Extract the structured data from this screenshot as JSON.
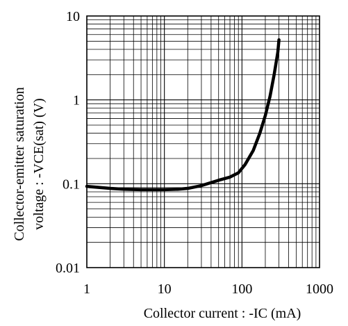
{
  "chart_data": {
    "type": "line",
    "xlabel": "Collector current : -IC (mA)",
    "ylabel_lines": [
      "Collector-emitter saturation",
      "voltage : -VCE(sat) (V)"
    ],
    "x_scale": "log",
    "y_scale": "log",
    "xlim": [
      1,
      1000
    ],
    "ylim": [
      0.01,
      10
    ],
    "x_tick_labels": [
      "1",
      "10",
      "100",
      "1000"
    ],
    "y_tick_labels": [
      "10",
      "1",
      "0.1",
      "0.01"
    ],
    "x_tick_values": [
      1,
      10,
      100,
      1000
    ],
    "y_tick_values": [
      10,
      1,
      0.1,
      0.01
    ],
    "grid": true,
    "series": [
      {
        "color": "#000000",
        "points": [
          {
            "x": 1,
            "y": 0.093
          },
          {
            "x": 2,
            "y": 0.088
          },
          {
            "x": 3,
            "y": 0.086
          },
          {
            "x": 5,
            "y": 0.085
          },
          {
            "x": 10,
            "y": 0.085
          },
          {
            "x": 15,
            "y": 0.086
          },
          {
            "x": 20,
            "y": 0.088
          },
          {
            "x": 30,
            "y": 0.095
          },
          {
            "x": 50,
            "y": 0.11
          },
          {
            "x": 70,
            "y": 0.12
          },
          {
            "x": 90,
            "y": 0.135
          },
          {
            "x": 110,
            "y": 0.17
          },
          {
            "x": 140,
            "y": 0.25
          },
          {
            "x": 170,
            "y": 0.4
          },
          {
            "x": 200,
            "y": 0.65
          },
          {
            "x": 230,
            "y": 1.1
          },
          {
            "x": 260,
            "y": 2.0
          },
          {
            "x": 290,
            "y": 3.7
          },
          {
            "x": 300,
            "y": 5.2
          }
        ]
      }
    ]
  }
}
